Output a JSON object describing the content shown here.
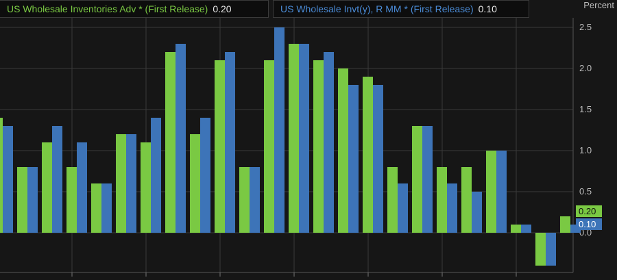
{
  "legend": {
    "series1_label": "US Wholesale Inventories Adv * (First Release)",
    "series1_value": "0.20",
    "series2_label": "US Wholesale Invt(y), R MM * (First Release)",
    "series2_value": "0.10"
  },
  "axis": {
    "unit": "Percent"
  },
  "colors": {
    "background": "#161616",
    "grid": "#3a3a3a",
    "series1": "#7ac943",
    "series2": "#3d74b8",
    "tick_text": "#bdbdbd"
  },
  "chart_data": {
    "type": "bar",
    "ylim": [
      -0.4,
      2.75
    ],
    "yticks": [
      "0.0",
      "0.5",
      "1.0",
      "1.5",
      "2.0",
      "2.5"
    ],
    "grid": true,
    "legend_position": "top-left",
    "series": [
      {
        "name": "US Wholesale Inventories Adv * (First Release)",
        "values": [
          1.4,
          0.8,
          1.1,
          0.8,
          0.6,
          1.2,
          1.1,
          2.2,
          1.2,
          2.1,
          0.8,
          2.1,
          2.3,
          2.1,
          2.0,
          1.9,
          0.8,
          1.3,
          0.8,
          0.8,
          1.0,
          0.1,
          -0.4,
          0.2
        ]
      },
      {
        "name": "US Wholesale Invt(y), R MM * (First Release)",
        "values": [
          1.3,
          0.8,
          1.3,
          1.1,
          0.6,
          1.2,
          1.4,
          2.3,
          1.4,
          2.2,
          0.8,
          2.5,
          2.3,
          2.2,
          1.8,
          1.8,
          0.6,
          1.3,
          0.6,
          0.5,
          1.0,
          0.1,
          -0.4,
          0.1
        ]
      }
    ],
    "last_value_tags": [
      "0.20",
      "0.10"
    ]
  }
}
